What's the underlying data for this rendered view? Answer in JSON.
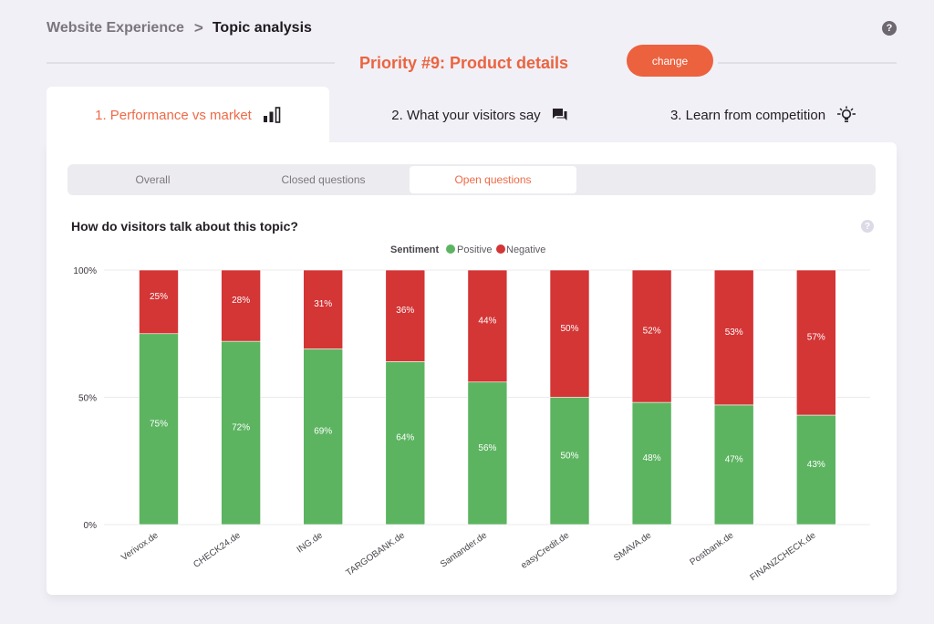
{
  "breadcrumb": {
    "parent": "Website Experience",
    "separator": ">",
    "current": "Topic analysis"
  },
  "header": {
    "help_icon": "question-circle-icon",
    "priority_title": "Priority #9: Product details",
    "change_label": "change"
  },
  "tabs": [
    {
      "label": "1. Performance vs market",
      "icon": "bar-chart-icon",
      "active": true
    },
    {
      "label": "2. What your visitors say",
      "icon": "chat-bubbles-icon",
      "active": false
    },
    {
      "label": "3. Learn from competition",
      "icon": "lightbulb-icon",
      "active": false
    }
  ],
  "subtabs": [
    {
      "label": "Overall",
      "active": false
    },
    {
      "label": "Closed questions",
      "active": false
    },
    {
      "label": "Open questions",
      "active": true
    }
  ],
  "colors": {
    "accent": "#ec613e",
    "positive": "#5cb460",
    "negative": "#d43535"
  },
  "chart_data": {
    "type": "bar",
    "stacked": true,
    "title": "How do visitors talk about this topic?",
    "legend_title": "Sentiment",
    "legend_position": "top-center",
    "categories": [
      "Verivox.de",
      "CHECK24.de",
      "ING.de",
      "TARGOBANK.de",
      "Santander.de",
      "easyCredit.de",
      "SMAVA.de",
      "Postbank.de",
      "FINANZCHECK.de"
    ],
    "series": [
      {
        "name": "Positive",
        "color": "#5cb460",
        "values": [
          75,
          72,
          69,
          64,
          56,
          50,
          48,
          47,
          43
        ]
      },
      {
        "name": "Negative",
        "color": "#d43535",
        "values": [
          25,
          28,
          31,
          36,
          44,
          50,
          52,
          53,
          57
        ]
      }
    ],
    "yticks": [
      "0%",
      "50%",
      "100%"
    ],
    "ylim": [
      0,
      100
    ],
    "xlabel": "",
    "ylabel": "",
    "grid": true
  }
}
